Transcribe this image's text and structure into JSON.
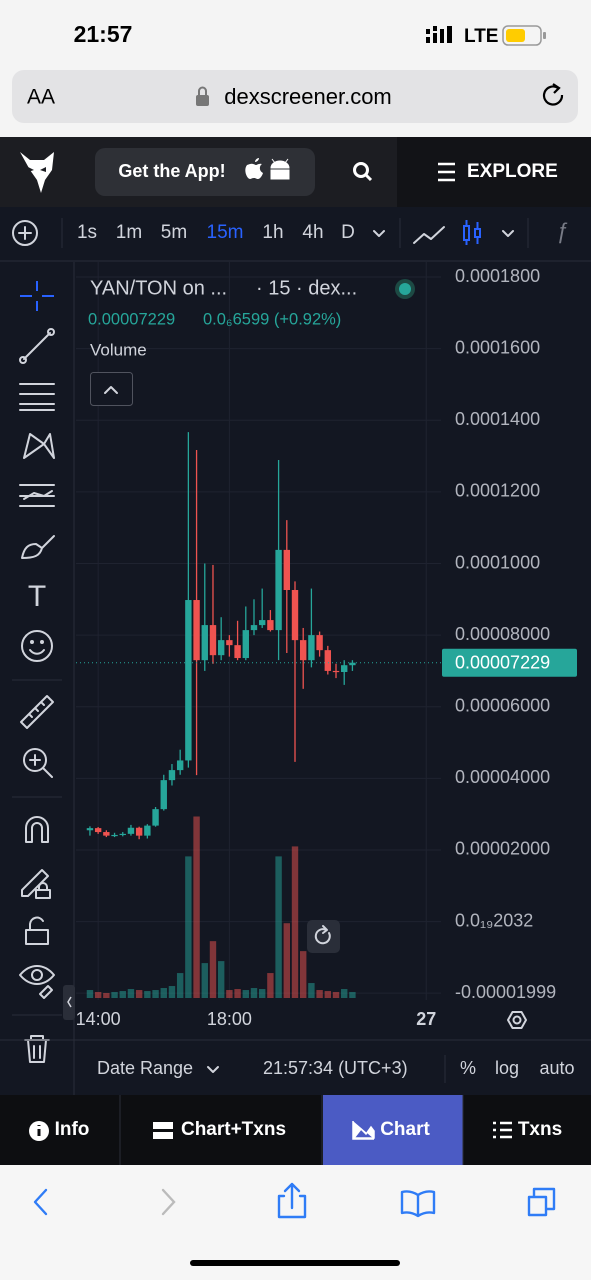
{
  "status_bar": {
    "time": "21:57",
    "network": "LTE"
  },
  "browser": {
    "text_size": "AA",
    "url": "dexscreener.com"
  },
  "header": {
    "get_app": "Get the App!",
    "explore": "EXPLORE"
  },
  "toolbar": {
    "intervals": [
      "1s",
      "1m",
      "5m",
      "15m",
      "1h",
      "4h",
      "D"
    ],
    "selected": 3
  },
  "chart_data": {
    "type": "candlestick",
    "title": "YAN/TON on ...",
    "subtitle": "· 15 · dex...",
    "last_price": 7.229e-05,
    "change_label": "0.0₆6599 (+0.92%)",
    "volume_label": "Volume",
    "up_color": "#26a69a",
    "down_color": "#ef5350",
    "x": [
      0,
      1,
      2,
      3,
      4,
      5,
      6,
      7,
      8,
      9,
      10,
      11,
      12,
      13,
      14,
      15,
      16,
      17,
      18,
      19,
      20,
      21,
      22,
      23,
      24,
      25,
      26,
      27,
      28,
      29,
      30,
      31,
      32
    ],
    "open": [
      2.55e-05,
      2.61e-05,
      2.5e-05,
      2.4e-05,
      2.42e-05,
      2.45e-05,
      2.62e-05,
      2.4e-05,
      2.68e-05,
      3.14e-05,
      3.95e-05,
      4.23e-05,
      4.5e-05,
      8.98e-05,
      7.3e-05,
      8.28e-05,
      7.44e-05,
      7.86e-05,
      7.72e-05,
      7.36e-05,
      8.14e-05,
      8.28e-05,
      8.42e-05,
      8.14e-05,
      0.0001038,
      9.26e-05,
      7.86e-05,
      7.3e-05,
      8e-05,
      7.58e-05,
      7e-05,
      6.97e-05,
      7.16e-05
    ],
    "high": [
      2.66e-05,
      2.64e-05,
      2.55e-05,
      2.48e-05,
      2.5e-05,
      2.7e-05,
      2.65e-05,
      2.72e-05,
      3.2e-05,
      4.1e-05,
      4.4e-05,
      4.8e-05,
      0.0001367,
      0.0001317,
      0.0001,
      9.96e-05,
      8.5e-05,
      8e-05,
      8.4e-05,
      8.8e-05,
      9e-05,
      9.3e-05,
      8.7e-05,
      0.0001289,
      0.0001121,
      9.5e-05,
      8.2e-05,
      9.3e-05,
      8.1e-05,
      7.7e-05,
      7.2e-05,
      7.3e-05,
      7.3e-05
    ],
    "low": [
      2.4e-05,
      2.45e-05,
      2.36e-05,
      2.36e-05,
      2.38e-05,
      2.4e-05,
      2.3e-05,
      2.32e-05,
      2.65e-05,
      3.1e-05,
      3.8e-05,
      4.1e-05,
      4.3e-05,
      4.09e-05,
      7e-05,
      7.2e-05,
      7.3e-05,
      7.4e-05,
      7.3e-05,
      7.3e-05,
      8e-05,
      8.2e-05,
      8.1e-05,
      7.3e-05,
      7.5e-05,
      4.46e-05,
      6.5e-05,
      7.1e-05,
      7.4e-05,
      6.9e-05,
      6.8e-05,
      6.61e-05,
      7e-05
    ],
    "close": [
      2.61e-05,
      2.5e-05,
      2.4e-05,
      2.42e-05,
      2.45e-05,
      2.62e-05,
      2.4e-05,
      2.68e-05,
      3.14e-05,
      3.95e-05,
      4.23e-05,
      4.5e-05,
      8.98e-05,
      7.3e-05,
      8.28e-05,
      7.44e-05,
      7.86e-05,
      7.72e-05,
      7.36e-05,
      8.14e-05,
      8.28e-05,
      8.42e-05,
      8.14e-05,
      0.0001038,
      9.26e-05,
      7.86e-05,
      7.3e-05,
      8e-05,
      7.58e-05,
      7e-05,
      6.97e-05,
      7.16e-05,
      7.23e-05
    ],
    "volume": [
      8,
      6,
      5,
      6,
      7,
      9,
      8,
      7,
      8,
      10,
      12,
      25,
      142,
      182,
      35,
      57,
      37,
      8,
      9,
      8,
      10,
      9,
      25,
      142,
      75,
      152,
      47,
      15,
      8,
      7,
      6,
      9,
      6
    ],
    "volume_ylim": [
      0,
      740
    ],
    "ylim": [
      -2.19e-05,
      0.0001842
    ],
    "yticks": [
      {
        "value": 0.00018,
        "label": "0.0001800"
      },
      {
        "value": 0.00016,
        "label": "0.0001600"
      },
      {
        "value": 0.00014,
        "label": "0.0001400"
      },
      {
        "value": 0.00012,
        "label": "0.0001200"
      },
      {
        "value": 0.0001,
        "label": "0.0001000"
      },
      {
        "value": 8e-05,
        "label": "0.00008000"
      },
      {
        "value": 6e-05,
        "label": "0.00006000"
      },
      {
        "value": 4e-05,
        "label": "0.00004000"
      },
      {
        "value": 2e-05,
        "label": "0.00002000"
      },
      {
        "value": 2.032e-20,
        "label": "0.0₁₉2032"
      },
      {
        "value": -1.999e-05,
        "label": "-0.00001999"
      }
    ],
    "xlim": [
      -1.7,
      42.8
    ],
    "xticks": [
      {
        "value": 1,
        "label": "14:00"
      },
      {
        "value": 17,
        "label": "18:00"
      },
      {
        "value": 41,
        "label": "27"
      }
    ]
  },
  "bottom_bar": {
    "date_range": "Date Range",
    "time": "21:57:34 (UTC+3)",
    "percent": "%",
    "log": "log",
    "auto": "auto"
  },
  "tabs": {
    "items": [
      "Info",
      "Chart+Txns",
      "Chart",
      "Txns"
    ],
    "selected": 2
  }
}
